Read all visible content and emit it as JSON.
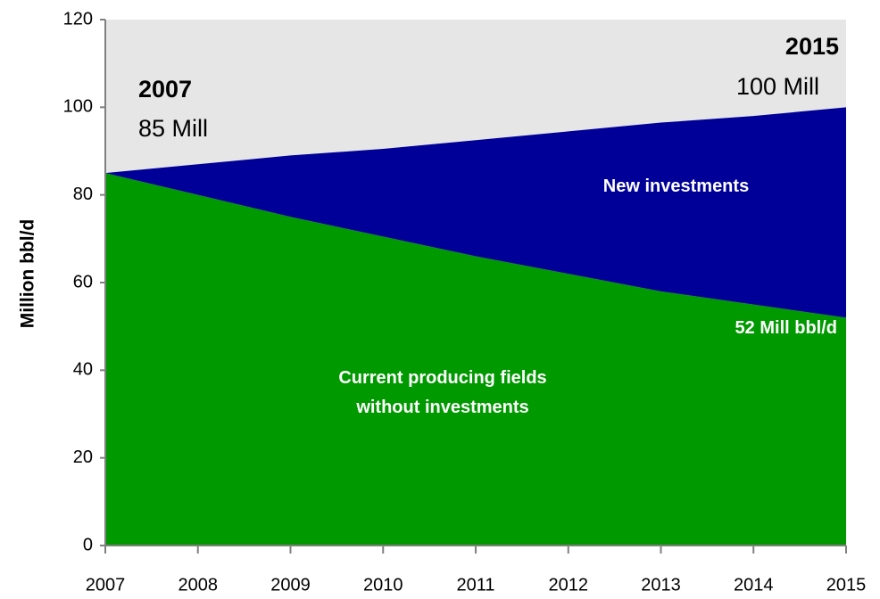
{
  "chart_data": {
    "type": "stacked_area",
    "y_label": "Million bbl/d",
    "x": [
      2007,
      2008,
      2009,
      2010,
      2011,
      2012,
      2013,
      2014,
      2015
    ],
    "series": [
      {
        "name": "Current producing fields without investments",
        "color": "#009900",
        "values": [
          85,
          80,
          75,
          70.5,
          66,
          62,
          58,
          55,
          52
        ]
      },
      {
        "name": "New investments",
        "color": "#000099",
        "values": [
          0,
          7,
          14,
          20,
          26.5,
          32.5,
          38.5,
          43,
          48
        ]
      }
    ],
    "plot_background": "#e6e6e6",
    "xlim": [
      2007,
      2015
    ],
    "xticks": [
      2007,
      2008,
      2009,
      2010,
      2011,
      2012,
      2013,
      2014,
      2015
    ],
    "ylim": [
      0,
      120
    ],
    "yticks": [
      0,
      20,
      40,
      60,
      80,
      100,
      120
    ],
    "annotations": [
      "2007",
      "85 Mill",
      "2015",
      "100 Mill",
      "52 Mill bbl/d"
    ]
  }
}
